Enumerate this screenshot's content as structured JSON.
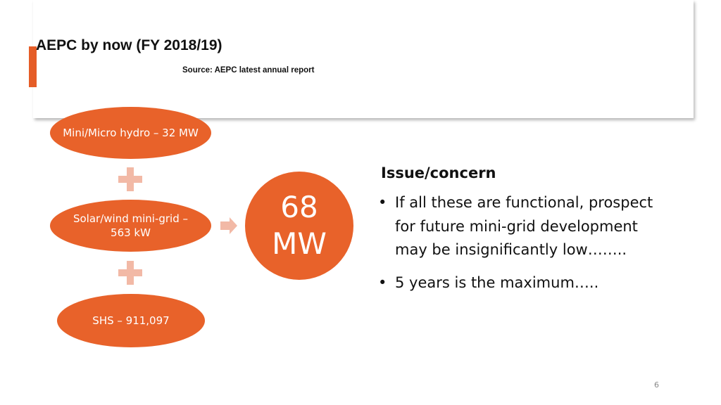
{
  "header": {
    "title": "AEPC by now (FY 2018/19)",
    "source": "Source: AEPC latest annual report"
  },
  "diagram": {
    "items": [
      {
        "label": "Mini/Micro hydro – 32 MW"
      },
      {
        "label": "Solar/wind mini-grid – 563 kW"
      },
      {
        "label": "SHS – 911,097"
      }
    ],
    "total": {
      "value": "68",
      "unit": "MW"
    }
  },
  "issues": {
    "heading": "Issue/concern",
    "bullets": [
      "If all these are functional, prospect for future mini-grid development may be insignificantly low……..",
      "5 years is the maximum….."
    ]
  },
  "footer": {
    "page_number": "6"
  },
  "colors": {
    "accent": "#e55d27",
    "ellipse": "#e8622a",
    "connector": "#f2b9a6"
  }
}
